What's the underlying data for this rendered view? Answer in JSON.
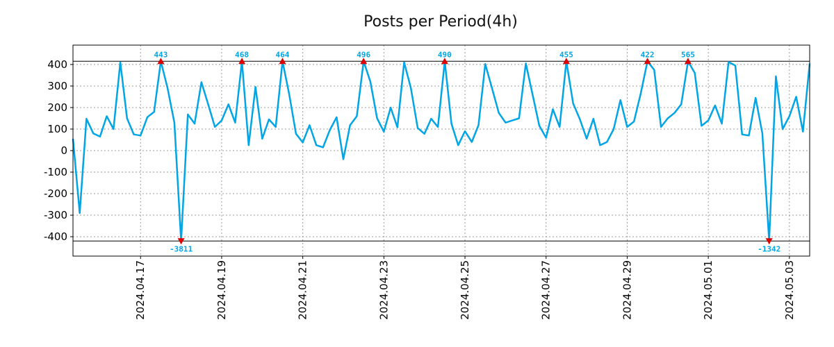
{
  "chart_data": {
    "type": "line",
    "title": "Posts per Period(4h)",
    "xlabel": "",
    "ylabel": "",
    "ylim": [
      -490,
      490
    ],
    "yticks": [
      400,
      300,
      200,
      100,
      0,
      -100,
      -200,
      -300,
      -400
    ],
    "ytick_labels": [
      "400",
      "300",
      "200",
      "100",
      "0",
      "-100",
      "-200",
      "-300",
      "-400"
    ],
    "xticks": [
      {
        "pos": 10,
        "label": "2024.04.17"
      },
      {
        "pos": 22,
        "label": "2024.04.19"
      },
      {
        "pos": 34,
        "label": "2024.04.21"
      },
      {
        "pos": 46,
        "label": "2024.04.23"
      },
      {
        "pos": 58,
        "label": "2024.04.25"
      },
      {
        "pos": 70,
        "label": "2024.04.27"
      },
      {
        "pos": 82,
        "label": "2024.04.29"
      },
      {
        "pos": 94,
        "label": "2024.05.01"
      },
      {
        "pos": 106,
        "label": "2024.05.03"
      }
    ],
    "xlim": [
      0,
      109
    ],
    "grid": true,
    "clip_lines": [
      415,
      -420
    ],
    "series": [
      {
        "name": "posts",
        "color": "#00a5e6",
        "values": [
          55,
          -290,
          148,
          80,
          65,
          160,
          100,
          410,
          150,
          75,
          70,
          155,
          180,
          415,
          290,
          130,
          -420,
          168,
          125,
          318,
          215,
          110,
          140,
          215,
          130,
          415,
          25,
          296,
          55,
          145,
          110,
          415,
          260,
          78,
          38,
          118,
          25,
          15,
          95,
          155,
          -40,
          118,
          160,
          415,
          320,
          150,
          88,
          200,
          108,
          410,
          290,
          105,
          78,
          148,
          110,
          415,
          125,
          25,
          90,
          40,
          118,
          402,
          290,
          175,
          130,
          140,
          150,
          405,
          260,
          115,
          60,
          192,
          110,
          415,
          220,
          145,
          55,
          148,
          25,
          40,
          100,
          235,
          110,
          135,
          265,
          415,
          375,
          110,
          150,
          175,
          215,
          415,
          360,
          115,
          140,
          210,
          125,
          412,
          395,
          75,
          70,
          245,
          80,
          -420,
          345,
          100,
          160,
          250,
          88,
          405
        ]
      }
    ],
    "annotations": [
      {
        "type": "max",
        "x": 13,
        "label": "443"
      },
      {
        "type": "max",
        "x": 25,
        "label": "468"
      },
      {
        "type": "max",
        "x": 31,
        "label": "464"
      },
      {
        "type": "max",
        "x": 43,
        "label": "496"
      },
      {
        "type": "max",
        "x": 55,
        "label": "490"
      },
      {
        "type": "max",
        "x": 73,
        "label": "455"
      },
      {
        "type": "max",
        "x": 85,
        "label": "422"
      },
      {
        "type": "max",
        "x": 91,
        "label": "565"
      },
      {
        "type": "min",
        "x": 16,
        "label": "-3811"
      },
      {
        "type": "min",
        "x": 103,
        "label": "-1342"
      }
    ],
    "annotation_color": "#00a5e6",
    "marker_color": "#dd0000"
  }
}
